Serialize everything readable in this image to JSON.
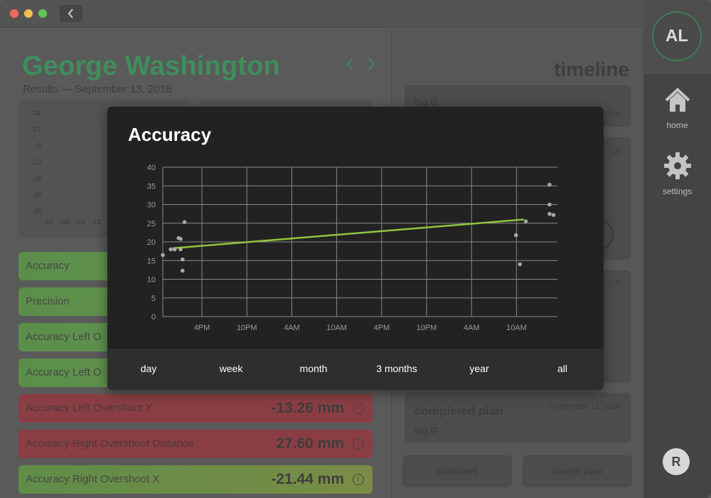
{
  "window": {
    "traffic_lights": [
      "#ed6a5e",
      "#f5bf4f",
      "#61c554"
    ],
    "back_icon": "chevron-left-icon"
  },
  "patient": {
    "name": "George Washington",
    "subtitle": "Results — September 13, 2018"
  },
  "mini_chart": {
    "y_ticks": [
      "24",
      "12",
      "0",
      "-12",
      "-24",
      "-36",
      "-48"
    ],
    "x_ticks": [
      "-48",
      "-36",
      "-24",
      "-12"
    ]
  },
  "metrics": [
    {
      "label": "Accuracy",
      "value": "",
      "status": "green"
    },
    {
      "label": "Precision",
      "value": "",
      "status": "green"
    },
    {
      "label": "Accuracy Left O",
      "value": "",
      "status": "green"
    },
    {
      "label": "Accuracy Left O",
      "value": "",
      "status": "green"
    },
    {
      "label": "Accuracy Left Overshoot Y",
      "value": "-13.26 mm",
      "status": "red"
    },
    {
      "label": "Accuracy Right Overshoot Distance",
      "value": "27.60 mm",
      "status": "red"
    },
    {
      "label": "Accuracy Right Overshoot X",
      "value": "-21.44 mm",
      "status": "mixed"
    }
  ],
  "timeline": {
    "title": "timeline",
    "cards": [
      {
        "title": "",
        "sub": "Big G",
        "date": "",
        "more": "nore"
      },
      {
        "title": "",
        "sub": "",
        "date": "18"
      },
      {
        "title": "",
        "sub": "",
        "date": "18"
      },
      {
        "title": "completed plan",
        "sub": "Big G",
        "date": "September 13, 2018"
      }
    ],
    "buttons": {
      "comment": "comment",
      "create_plan": "create plan"
    }
  },
  "sidebar": {
    "avatar_initials": "AL",
    "items": [
      {
        "label": "home",
        "icon": "home-icon"
      },
      {
        "label": "settings",
        "icon": "gear-icon"
      }
    ]
  },
  "modal": {
    "title": "Accuracy",
    "ranges": [
      "day",
      "week",
      "month",
      "3 months",
      "year",
      "all"
    ],
    "accent": "#8dc63f"
  },
  "chart_data": {
    "type": "scatter",
    "title": "Accuracy",
    "ylim": [
      0,
      40
    ],
    "y_ticks": [
      0,
      5,
      10,
      15,
      20,
      25,
      30,
      35,
      40
    ],
    "x_ticks": [
      "4PM",
      "10PM",
      "4AM",
      "10AM",
      "4PM",
      "10PM",
      "4AM",
      "10AM"
    ],
    "grid": true,
    "points": [
      {
        "x": 0.0,
        "y": 16.5
      },
      {
        "x": 0.2,
        "y": 18.0
      },
      {
        "x": 0.3,
        "y": 18.0
      },
      {
        "x": 0.45,
        "y": 18.0
      },
      {
        "x": 0.4,
        "y": 21.0
      },
      {
        "x": 0.45,
        "y": 20.8
      },
      {
        "x": 0.55,
        "y": 25.3
      },
      {
        "x": 0.5,
        "y": 15.3
      },
      {
        "x": 0.5,
        "y": 12.3
      },
      {
        "x": 8.95,
        "y": 21.8
      },
      {
        "x": 9.05,
        "y": 14.0
      },
      {
        "x": 9.2,
        "y": 25.5
      },
      {
        "x": 9.8,
        "y": 35.3
      },
      {
        "x": 9.8,
        "y": 30.0
      },
      {
        "x": 9.8,
        "y": 27.5
      },
      {
        "x": 9.9,
        "y": 27.2
      }
    ],
    "trend": {
      "x": [
        0.25,
        9.15
      ],
      "y": [
        18.3,
        26.0
      ]
    }
  }
}
